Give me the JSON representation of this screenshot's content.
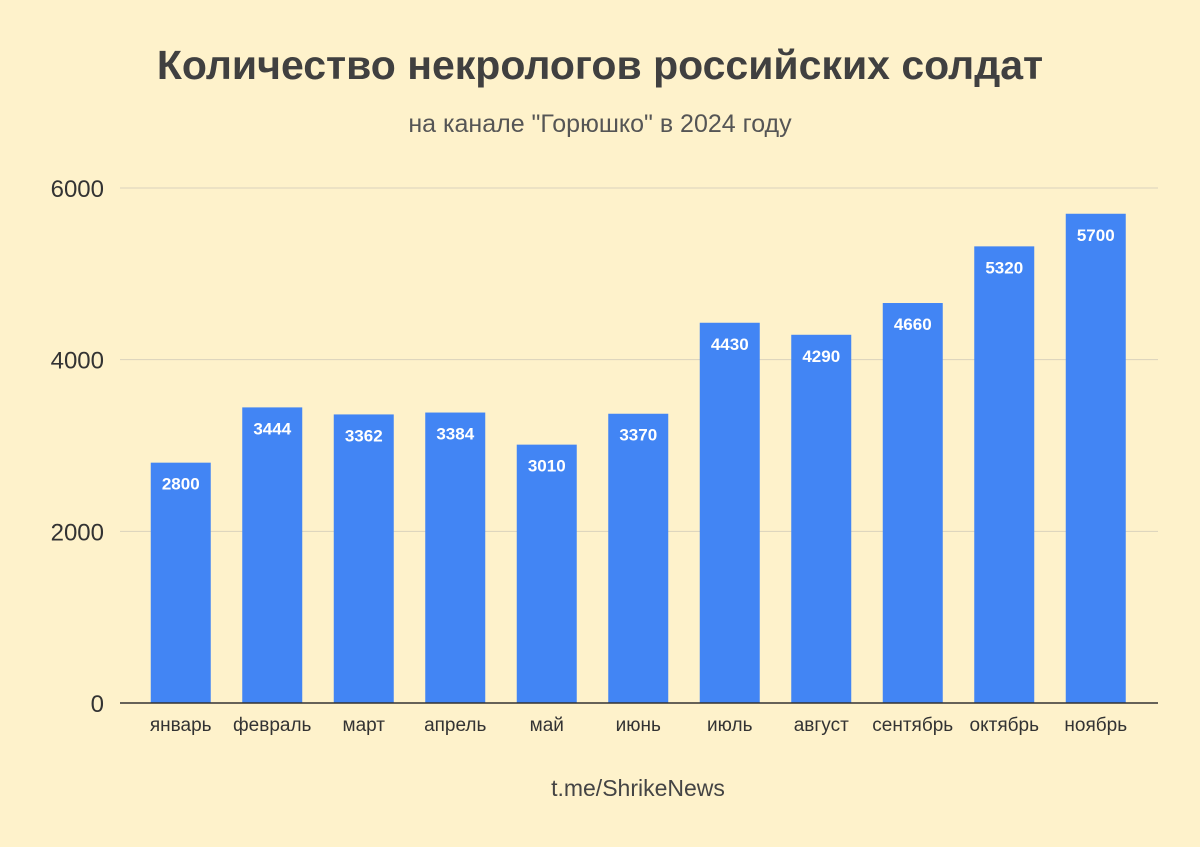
{
  "colors": {
    "background": "#FEF2CB",
    "bar": "#4285F4",
    "grid": "#D9D2BC",
    "axis": "#333333",
    "label_text": "#FFFFFF"
  },
  "footer": {
    "source": "t.me/ShrikeNews"
  },
  "chart_data": {
    "type": "bar",
    "title": "Количество некрологов российских солдат",
    "subtitle": "на канале \"Горюшко\" в 2024 году",
    "xlabel": "",
    "ylabel": "",
    "categories": [
      "январь",
      "февраль",
      "март",
      "апрель",
      "май",
      "июнь",
      "июль",
      "август",
      "сентябрь",
      "октябрь",
      "ноябрь"
    ],
    "values": [
      2800,
      3444,
      3362,
      3384,
      3010,
      3370,
      4430,
      4290,
      4660,
      5320,
      5700
    ],
    "ylim": [
      0,
      6000
    ],
    "yticks": [
      0,
      2000,
      4000,
      6000
    ],
    "grid": true,
    "legend": "none",
    "data_labels": true
  }
}
